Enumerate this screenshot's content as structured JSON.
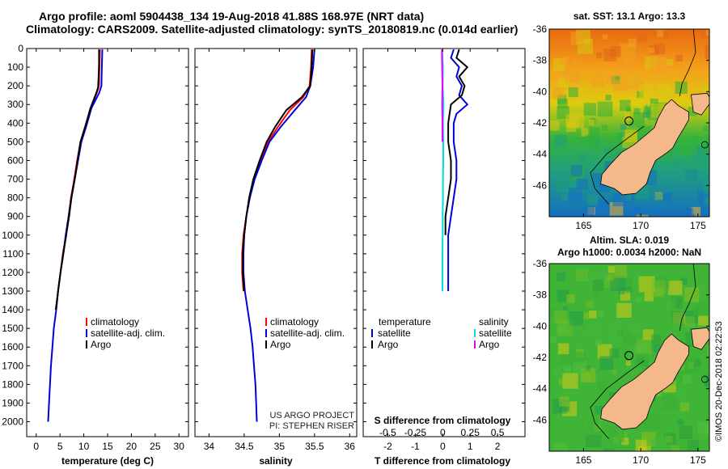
{
  "header": {
    "line1": "Argo profile: aoml 5904438_134 19-Aug-2018 41.88S 168.97E (NRT data)",
    "line2": "Climatology: CARS2009. Satellite-adjusted climatology: synTS_20180819.nc (0.014d earlier)"
  },
  "colors": {
    "climatology": "#ff0000",
    "satellite": "#0000dd",
    "argo": "#000000",
    "sat_salinity": "#00dddd",
    "argo_salinity": "#ee00ee",
    "land": "#f5b88a"
  },
  "chart_data": [
    {
      "type": "line",
      "title": "",
      "xlabel": "temperature (deg C)",
      "ylabel": "",
      "xlim": [
        -2,
        32
      ],
      "ylim": [
        2080,
        0
      ],
      "x_ticks": [
        "0",
        "5",
        "10",
        "15",
        "20",
        "25",
        "30"
      ],
      "y_ticks": [
        "0",
        "100",
        "200",
        "300",
        "400",
        "500",
        "600",
        "700",
        "800",
        "900",
        "1000",
        "1100",
        "1200",
        "1300",
        "1400",
        "1500",
        "1600",
        "1700",
        "1800",
        "1900",
        "2000"
      ],
      "legend": [
        "climatology",
        "satellite-adj. clim.",
        "Argo"
      ],
      "legend_position": "lower-center",
      "series": [
        {
          "name": "climatology",
          "color": "#ff0000",
          "points": [
            [
              13.4,
              5
            ],
            [
              13.3,
              100
            ],
            [
              13.2,
              200
            ],
            [
              12.7,
              240
            ],
            [
              11.3,
              330
            ],
            [
              10.3,
              420
            ],
            [
              9.3,
              500
            ],
            [
              8.6,
              600
            ],
            [
              8.0,
              700
            ],
            [
              7.3,
              800
            ],
            [
              6.8,
              900
            ],
            [
              6.3,
              1000
            ],
            [
              5.6,
              1100
            ],
            [
              5.1,
              1200
            ],
            [
              4.6,
              1300
            ],
            [
              4.2,
              1400
            ]
          ]
        },
        {
          "name": "satellite-adj. clim.",
          "color": "#0000dd",
          "points": [
            [
              13.9,
              5
            ],
            [
              13.8,
              100
            ],
            [
              13.7,
              200
            ],
            [
              13.2,
              240
            ],
            [
              11.6,
              320
            ],
            [
              10.6,
              410
            ],
            [
              9.5,
              500
            ],
            [
              8.8,
              600
            ],
            [
              8.1,
              700
            ],
            [
              7.4,
              800
            ],
            [
              6.8,
              900
            ],
            [
              6.2,
              1000
            ],
            [
              5.7,
              1100
            ],
            [
              5.1,
              1200
            ],
            [
              4.6,
              1300
            ],
            [
              4.2,
              1400
            ],
            [
              3.7,
              1500
            ],
            [
              3.4,
              1600
            ],
            [
              3.1,
              1700
            ],
            [
              2.9,
              1800
            ],
            [
              2.7,
              1900
            ],
            [
              2.5,
              2000
            ]
          ]
        },
        {
          "name": "Argo",
          "color": "#000000",
          "points": [
            [
              13.2,
              5
            ],
            [
              13.2,
              80
            ],
            [
              13.1,
              160
            ],
            [
              13.0,
              210
            ],
            [
              12.6,
              240
            ],
            [
              11.4,
              320
            ],
            [
              10.4,
              410
            ],
            [
              9.3,
              500
            ],
            [
              8.7,
              600
            ],
            [
              8.1,
              700
            ],
            [
              7.4,
              800
            ],
            [
              6.9,
              900
            ],
            [
              6.3,
              1000
            ],
            [
              5.7,
              1100
            ],
            [
              5.1,
              1200
            ],
            [
              4.6,
              1300
            ],
            [
              4.1,
              1400
            ]
          ]
        }
      ]
    },
    {
      "type": "line",
      "xlabel": "salinity",
      "xlim": [
        33.8,
        36.1
      ],
      "ylim": [
        2080,
        0
      ],
      "x_ticks": [
        "34",
        "34.5",
        "35",
        "35.5",
        "36"
      ],
      "legend": [
        "climatology",
        "satellite-adj. clim.",
        "Argo"
      ],
      "legend_position": "lower-center",
      "series": [
        {
          "name": "climatology",
          "color": "#ff0000",
          "points": [
            [
              35.46,
              5
            ],
            [
              35.45,
              100
            ],
            [
              35.43,
              200
            ],
            [
              35.34,
              260
            ],
            [
              35.15,
              330
            ],
            [
              34.98,
              420
            ],
            [
              34.84,
              500
            ],
            [
              34.73,
              600
            ],
            [
              34.64,
              700
            ],
            [
              34.58,
              800
            ],
            [
              34.53,
              900
            ],
            [
              34.49,
              1000
            ],
            [
              34.47,
              1100
            ],
            [
              34.47,
              1200
            ],
            [
              34.49,
              1300
            ]
          ]
        },
        {
          "name": "satellite-adj. clim.",
          "color": "#0000dd",
          "points": [
            [
              35.5,
              5
            ],
            [
              35.48,
              100
            ],
            [
              35.44,
              200
            ],
            [
              35.38,
              260
            ],
            [
              35.22,
              330
            ],
            [
              35.02,
              420
            ],
            [
              34.86,
              500
            ],
            [
              34.75,
              600
            ],
            [
              34.65,
              700
            ],
            [
              34.58,
              800
            ],
            [
              34.53,
              900
            ],
            [
              34.5,
              1000
            ],
            [
              34.49,
              1100
            ],
            [
              34.49,
              1200
            ],
            [
              34.51,
              1300
            ],
            [
              34.55,
              1400
            ],
            [
              34.59,
              1500
            ],
            [
              34.62,
              1600
            ],
            [
              34.64,
              1700
            ],
            [
              34.66,
              1800
            ],
            [
              34.67,
              1900
            ],
            [
              34.68,
              2000
            ]
          ]
        },
        {
          "name": "Argo",
          "color": "#000000",
          "points": [
            [
              35.47,
              5
            ],
            [
              35.46,
              100
            ],
            [
              35.44,
              200
            ],
            [
              35.32,
              260
            ],
            [
              35.1,
              330
            ],
            [
              34.94,
              420
            ],
            [
              34.82,
              500
            ],
            [
              34.72,
              600
            ],
            [
              34.63,
              700
            ],
            [
              34.57,
              800
            ],
            [
              34.53,
              900
            ],
            [
              34.5,
              1000
            ],
            [
              34.48,
              1100
            ],
            [
              34.48,
              1200
            ],
            [
              34.5,
              1300
            ]
          ]
        }
      ]
    },
    {
      "type": "line",
      "xlabel": "T difference from climatology",
      "xlabel_top": "S difference from climatology",
      "xlim": [
        -2.9,
        3.0
      ],
      "ylim": [
        2080,
        0
      ],
      "x_ticks": [
        "-2",
        "-1",
        "0",
        "1",
        "2"
      ],
      "x_ticks_top": [
        "-0.5",
        "-0.25",
        "0",
        "0.25",
        "0.5"
      ],
      "legend_left_title": "temperature",
      "legend_right_title": "salinity",
      "legend_left": [
        "satellite",
        "Argo"
      ],
      "legend_right": [
        "satellite",
        "Argo"
      ],
      "legend_position": "lower-center",
      "series": [
        {
          "name": "T satellite",
          "color": "#0000dd",
          "points": [
            [
              0.4,
              5
            ],
            [
              0.3,
              50
            ],
            [
              0.6,
              100
            ],
            [
              0.5,
              150
            ],
            [
              0.7,
              200
            ],
            [
              0.6,
              250
            ],
            [
              0.9,
              300
            ],
            [
              0.5,
              350
            ],
            [
              0.4,
              400
            ],
            [
              0.4,
              500
            ],
            [
              0.5,
              600
            ],
            [
              0.5,
              700
            ],
            [
              0.4,
              800
            ],
            [
              0.3,
              900
            ],
            [
              0.2,
              1000
            ],
            [
              0.2,
              1100
            ],
            [
              0.2,
              1200
            ],
            [
              0.2,
              1300
            ]
          ]
        },
        {
          "name": "T Argo",
          "color": "#000000",
          "points": [
            [
              0.6,
              5
            ],
            [
              0.5,
              50
            ],
            [
              0.9,
              100
            ],
            [
              0.6,
              150
            ],
            [
              0.8,
              200
            ],
            [
              0.7,
              250
            ],
            [
              0.3,
              300
            ],
            [
              0.2,
              400
            ],
            [
              0.2,
              500
            ],
            [
              0.3,
              600
            ],
            [
              0.3,
              700
            ],
            [
              0.2,
              800
            ],
            [
              0.1,
              900
            ],
            [
              0.1,
              1000
            ]
          ]
        },
        {
          "name": "S satellite",
          "color": "#00dddd",
          "points": [
            [
              -0.02,
              5
            ],
            [
              0.01,
              100
            ],
            [
              0.0,
              200
            ],
            [
              0.03,
              300
            ],
            [
              0.01,
              400
            ],
            [
              0.02,
              500
            ],
            [
              0.02,
              600
            ],
            [
              0.01,
              700
            ],
            [
              0.01,
              800
            ],
            [
              0.0,
              900
            ],
            [
              0.0,
              1000
            ],
            [
              -0.01,
              1100
            ],
            [
              -0.01,
              1200
            ],
            [
              -0.01,
              1300
            ]
          ]
        },
        {
          "name": "S Argo",
          "color": "#ee00ee",
          "points": [
            [
              -0.03,
              5
            ],
            [
              -0.02,
              100
            ],
            [
              -0.01,
              200
            ],
            [
              -0.02,
              300
            ],
            [
              -0.01,
              400
            ],
            [
              -0.01,
              500
            ]
          ]
        }
      ]
    },
    {
      "type": "heatmap",
      "title": "sat. SST: 13.1  Argo: 13.3",
      "x_ticks": [
        "165",
        "170",
        "175"
      ],
      "y_ticks": [
        "-36",
        "-38",
        "-40",
        "-42",
        "-44",
        "-46"
      ],
      "xlim": [
        162,
        176
      ],
      "ylim": [
        -48,
        -36
      ],
      "profile_location": [
        168.97,
        -41.88
      ]
    },
    {
      "type": "heatmap",
      "title": "Altim. SLA: 0.019",
      "subtitle": "Argo h1000: 0.0034 h2000: NaN",
      "x_ticks": [
        "165",
        "170",
        "175"
      ],
      "y_ticks": [
        "-36",
        "-38",
        "-40",
        "-42",
        "-44",
        "-46"
      ],
      "xlim": [
        162,
        176
      ],
      "ylim": [
        -48,
        -36
      ],
      "profile_location": [
        168.97,
        -41.88
      ]
    }
  ],
  "credits": {
    "line1": "US ARGO PROJECT",
    "line2": "PI: STEPHEN RISER"
  },
  "watermark": "©IMOS 20-Dec-2018 02:22:53"
}
